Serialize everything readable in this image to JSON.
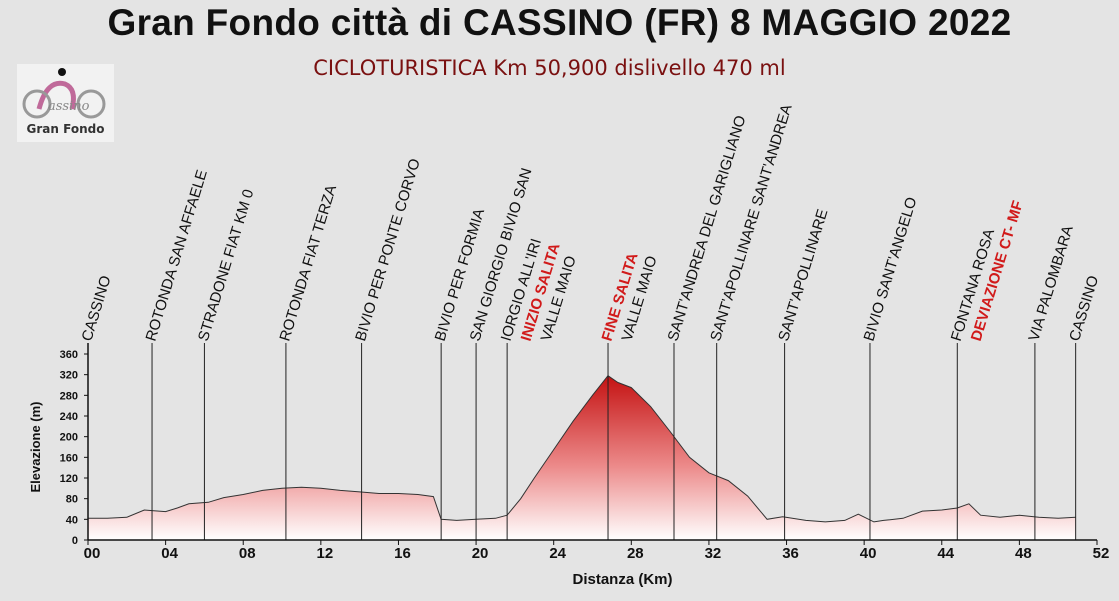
{
  "title": "Gran Fondo città di CASSINO (FR)  8 MAGGIO 2022",
  "subtitle": "CICLOTURISTICA Km 50,900  dislivello 470 ml",
  "logo": {
    "text": "Gran Fondo"
  },
  "colors": {
    "profile_top": "#c41212",
    "profile_bottom": "#ffffff",
    "highlight_label": "#d11a1a",
    "text": "#111111"
  },
  "chart_data": {
    "type": "area",
    "xlabel": "Distanza (Km)",
    "ylabel": "Elevazione (m)",
    "xlim": [
      0,
      52
    ],
    "ylim": [
      0,
      360
    ],
    "x_ticks": [
      "00",
      "04",
      "08",
      "12",
      "16",
      "20",
      "24",
      "28",
      "32",
      "36",
      "40",
      "44",
      "48",
      "52"
    ],
    "x_tick_values": [
      0,
      4,
      8,
      12,
      16,
      20,
      24,
      28,
      32,
      36,
      40,
      44,
      48,
      52
    ],
    "y_ticks": [
      0,
      40,
      80,
      120,
      160,
      200,
      240,
      280,
      320,
      360
    ],
    "grid": false,
    "x": [
      0,
      1,
      2,
      2.9,
      3.3,
      4,
      4.6,
      5.2,
      6.2,
      7,
      8,
      9,
      10,
      11,
      12,
      13,
      14,
      15,
      16,
      17,
      17.8,
      18.2,
      19,
      20,
      21,
      21.6,
      22.3,
      23,
      24,
      25,
      26,
      26.8,
      27.3,
      28,
      29,
      30,
      31,
      32,
      33,
      34,
      35,
      35.8,
      37,
      38,
      39,
      39.7,
      40.5,
      41,
      42,
      43,
      44,
      44.8,
      45.4,
      46,
      47,
      48,
      49,
      50,
      50.9
    ],
    "y": [
      42,
      42,
      44,
      58,
      57,
      55,
      62,
      70,
      73,
      82,
      88,
      96,
      100,
      102,
      100,
      96,
      93,
      90,
      90,
      88,
      84,
      40,
      38,
      40,
      42,
      48,
      80,
      120,
      175,
      230,
      280,
      318,
      305,
      295,
      258,
      210,
      160,
      130,
      115,
      85,
      40,
      45,
      38,
      35,
      38,
      50,
      35,
      38,
      42,
      56,
      58,
      62,
      70,
      48,
      44,
      48,
      44,
      42,
      44
    ],
    "waypoints": [
      {
        "km": 0,
        "label": "CASSINO",
        "highlight": false
      },
      {
        "km": 3.3,
        "label": "ROTONDA SAN  AFFAELE",
        "highlight": false
      },
      {
        "km": 6.0,
        "label": "STRADONE FIAT KM 0",
        "highlight": false
      },
      {
        "km": 10.2,
        "label": "ROTONDA  FIAT TERZA",
        "highlight": false
      },
      {
        "km": 14.1,
        "label": "BIVIO PER PONTE CORVO",
        "highlight": false
      },
      {
        "km": 18.2,
        "label": "BIVIO PER FORMIA",
        "highlight": false
      },
      {
        "km": 20.0,
        "label": "SAN GIORGIO BIVIO SAN",
        "highlight": false
      },
      {
        "km": 21.6,
        "label": "IORGIO ALL'IRI",
        "highlight": false
      },
      {
        "km": 21.6,
        "label": "INIZIO SALITA",
        "highlight": true
      },
      {
        "km": 21.6,
        "label": "VALLE MAIO",
        "highlight": false
      },
      {
        "km": 26.8,
        "label": "FINE SALITA",
        "highlight": true
      },
      {
        "km": 26.8,
        "label": "VALLE MAIO",
        "highlight": false
      },
      {
        "km": 30.2,
        "label": "SANT'ANDREA DEL GARIGLIANO",
        "highlight": false
      },
      {
        "km": 32.4,
        "label": "SANT'APOLLINARE SANT'ANDREA",
        "highlight": false
      },
      {
        "km": 35.9,
        "label": "SANT'APOLLINARE",
        "highlight": false
      },
      {
        "km": 40.3,
        "label": "BIVIO SANT'ANGELO",
        "highlight": false
      },
      {
        "km": 44.8,
        "label": "FONTANA ROSA",
        "highlight": false
      },
      {
        "km": 44.8,
        "label": "DEVIAZIONE CT- MF",
        "highlight": true
      },
      {
        "km": 48.8,
        "label": "VIA PALOMBARA",
        "highlight": false
      },
      {
        "km": 50.9,
        "label": "CASSINO",
        "highlight": false
      }
    ]
  }
}
